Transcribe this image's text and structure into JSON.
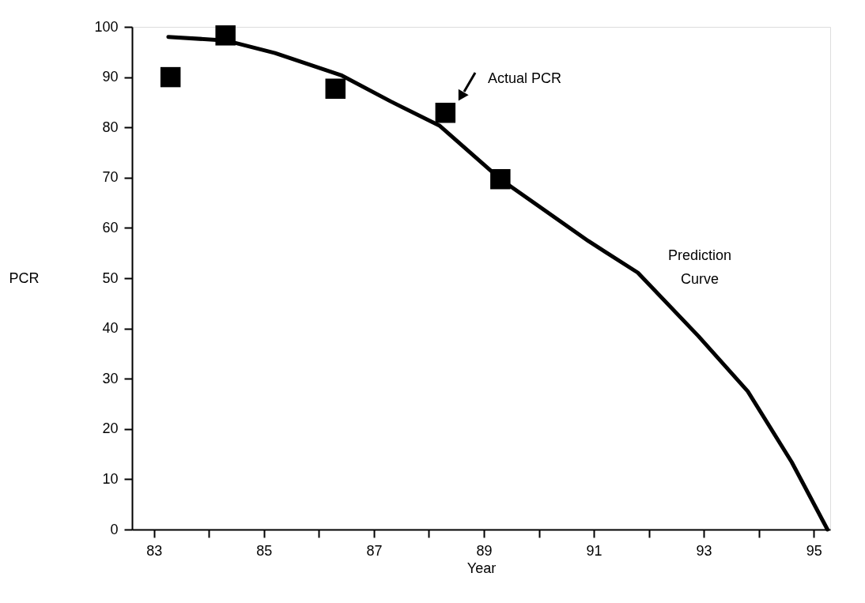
{
  "chart_data": {
    "type": "scatter",
    "xlabel": "Year",
    "ylabel": "PCR",
    "xlim": [
      82.6,
      95.3
    ],
    "ylim": [
      0,
      100
    ],
    "xticks": [
      83,
      {
        "value": 84,
        "label": null
      },
      85,
      {
        "value": 86,
        "label": null
      },
      87,
      {
        "value": 88,
        "label": null
      },
      89,
      {
        "value": 90,
        "label": null
      },
      91,
      {
        "value": 92,
        "label": null
      },
      93,
      {
        "value": 94,
        "label": null
      },
      95
    ],
    "yticks": [
      0,
      10,
      20,
      30,
      40,
      50,
      60,
      70,
      80,
      90,
      100
    ],
    "grid": false,
    "series": [
      {
        "marker": "square",
        "color": "#000000",
        "x": [
          83.3,
          84.3,
          86.3,
          88.3,
          89.3
        ],
        "values": [
          90,
          98.3,
          87.7,
          82.9,
          69.7
        ]
      },
      {
        "type": "line",
        "marker": "none",
        "line_style": "solid",
        "color": "#000000",
        "x": [
          83.26,
          84.3,
          85.2,
          86.4,
          87.3,
          88.2,
          89.3,
          90.9,
          91.8,
          92.9,
          93.8,
          94.6,
          95.25
        ],
        "values": [
          98,
          97.3,
          94.8,
          90.4,
          85.2,
          80.3,
          69.7,
          57.4,
          51.1,
          38.5,
          27.5,
          13.4,
          0
        ]
      }
    ],
    "annotations": [
      "Actual PCR",
      "Prediction\nCurve"
    ]
  }
}
